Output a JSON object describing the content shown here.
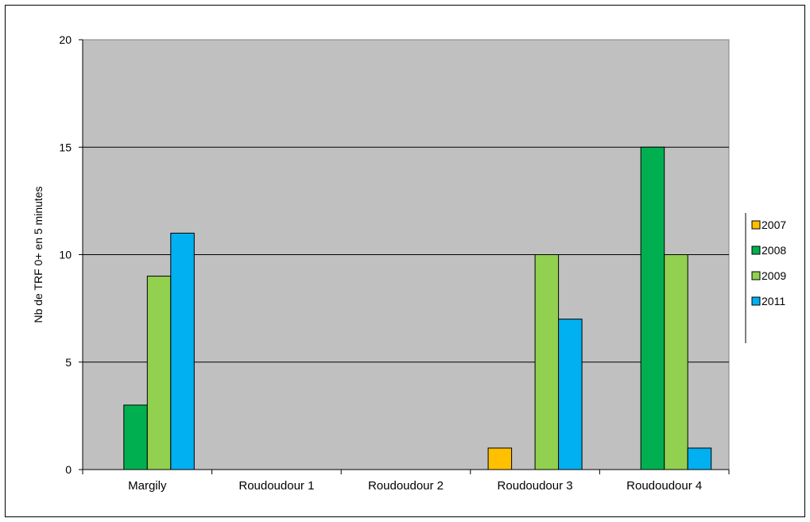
{
  "chart_data": {
    "type": "bar",
    "title": "",
    "xlabel": "",
    "ylabel": "Nb de TRF 0+ en 5 minutes",
    "ylim": [
      0,
      20
    ],
    "yticks": [
      "0",
      "5",
      "10",
      "15",
      "20"
    ],
    "grid": true,
    "legend_position": "right",
    "categories": [
      "Margily",
      "Roudoudour 1",
      "Roudoudour 2",
      "Roudoudour 3",
      "Roudoudour 4"
    ],
    "series": [
      {
        "name": "2007",
        "color": "#FFC000",
        "values": [
          0,
          0,
          0,
          1,
          0
        ]
      },
      {
        "name": "2008",
        "color": "#00B050",
        "values": [
          3,
          0,
          0,
          0,
          15
        ]
      },
      {
        "name": "2009",
        "color": "#92D050",
        "values": [
          9,
          0,
          0,
          10,
          10
        ]
      },
      {
        "name": "2011",
        "color": "#00B0F0",
        "values": [
          11,
          0,
          0,
          7,
          1
        ]
      }
    ],
    "plot_background": "#C0C0C0"
  }
}
